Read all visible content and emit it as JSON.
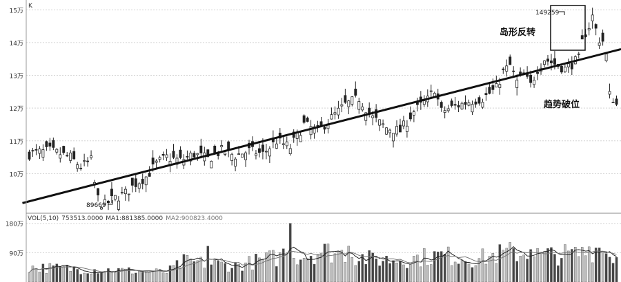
{
  "chart_data": {
    "type": "candlestick",
    "price_axis": {
      "ticks": [
        "10万",
        "11万",
        "12万",
        "13万",
        "14万",
        "15万"
      ],
      "tick_values": [
        100000,
        110000,
        120000,
        130000,
        140000,
        150000
      ],
      "range": [
        90000,
        153000
      ],
      "grid": true
    },
    "volume_axis": {
      "ticks": [
        "90万",
        "180万"
      ],
      "tick_values": [
        900000,
        1800000
      ],
      "range": [
        0,
        1900000
      ]
    },
    "corner_label": "K",
    "annotations": {
      "low_value": "89669",
      "high_value": "149259",
      "island_label": "岛形反转",
      "break_label": "趋势破位"
    },
    "volume_indicator": {
      "label": "VOL(5,10)",
      "value": "753513.0000",
      "ma1": "MA1:881385.0000",
      "ma2": "MA2:900823.4000"
    },
    "bar_count": 172,
    "price_anchors": [
      [
        0,
        106000
      ],
      [
        6,
        107000
      ],
      [
        12,
        105000
      ],
      [
        15,
        102000
      ],
      [
        18,
        104000
      ],
      [
        19,
        97000
      ],
      [
        20,
        92500
      ],
      [
        21,
        91000
      ],
      [
        22,
        90500
      ],
      [
        24,
        92000
      ],
      [
        26,
        93000
      ],
      [
        28,
        94000
      ],
      [
        31,
        97000
      ],
      [
        34,
        99000
      ],
      [
        37,
        103000
      ],
      [
        40,
        105000
      ],
      [
        44,
        104000
      ],
      [
        48,
        106000
      ],
      [
        52,
        104500
      ],
      [
        56,
        107000
      ],
      [
        60,
        105500
      ],
      [
        64,
        107000
      ],
      [
        68,
        106000
      ],
      [
        72,
        110000
      ],
      [
        76,
        108000
      ],
      [
        80,
        115000
      ],
      [
        84,
        113000
      ],
      [
        88,
        117000
      ],
      [
        92,
        121000
      ],
      [
        96,
        123000
      ],
      [
        100,
        117000
      ],
      [
        104,
        114000
      ],
      [
        108,
        113000
      ],
      [
        112,
        119000
      ],
      [
        116,
        122500
      ],
      [
        118,
        126000
      ],
      [
        120,
        119000
      ],
      [
        124,
        120500
      ],
      [
        128,
        122000
      ],
      [
        132,
        123000
      ],
      [
        136,
        126000
      ],
      [
        138,
        131000
      ],
      [
        140,
        133000
      ],
      [
        142,
        128000
      ],
      [
        144,
        130000
      ],
      [
        146,
        127000
      ],
      [
        148,
        132000
      ],
      [
        150,
        135000
      ],
      [
        152,
        134000
      ],
      [
        156,
        132000
      ],
      [
        160,
        135000
      ],
      [
        161,
        140000
      ],
      [
        162,
        143000
      ],
      [
        163,
        145000
      ],
      [
        164,
        148000
      ],
      [
        165,
        144000
      ],
      [
        166,
        141000
      ],
      [
        167,
        140500
      ],
      [
        168,
        136000
      ],
      [
        169,
        124000
      ],
      [
        170,
        123000
      ],
      [
        171,
        121000
      ]
    ],
    "volume_anchors": [
      [
        0,
        450000
      ],
      [
        20,
        380000
      ],
      [
        40,
        300000
      ],
      [
        45,
        620000
      ],
      [
        60,
        500000
      ],
      [
        70,
        720000
      ],
      [
        80,
        820000
      ],
      [
        85,
        950000
      ],
      [
        90,
        900000
      ],
      [
        95,
        800000
      ],
      [
        100,
        680000
      ],
      [
        110,
        700000
      ],
      [
        120,
        820000
      ],
      [
        130,
        700000
      ],
      [
        140,
        900000
      ],
      [
        150,
        820000
      ],
      [
        160,
        850000
      ],
      [
        165,
        1000000
      ],
      [
        171,
        760000
      ]
    ],
    "volume_spikes": [
      [
        76,
        1800000
      ],
      [
        52,
        1100000
      ],
      [
        74,
        1020000
      ],
      [
        93,
        1100000
      ],
      [
        137,
        1150000
      ],
      [
        146,
        1000000
      ],
      [
        156,
        1150000
      ],
      [
        163,
        1080000
      ],
      [
        166,
        1050000
      ]
    ],
    "trendline": [
      [
        0,
        91000
      ],
      [
        171,
        138000
      ]
    ]
  }
}
